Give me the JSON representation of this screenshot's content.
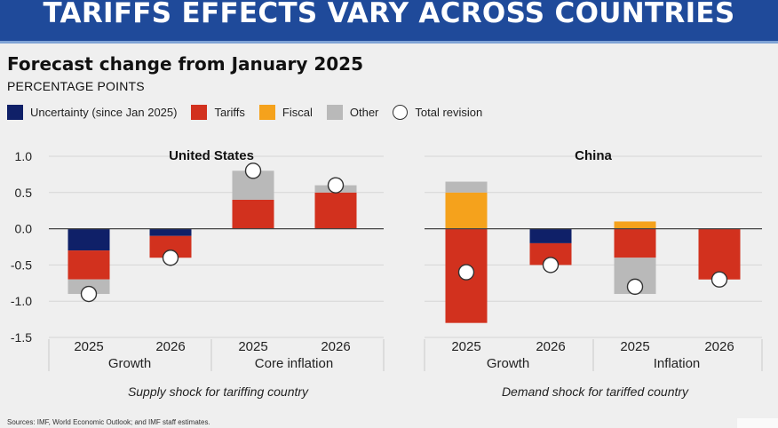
{
  "banner": {
    "title": "TARIFFS EFFECTS VARY ACROSS COUNTRIES"
  },
  "header": {
    "title": "Forecast change from January 2025",
    "subtitle": "PERCENTAGE POINTS"
  },
  "legend": [
    {
      "label": "Uncertainty (since Jan 2025)",
      "color": "#0f2068",
      "shape": "square"
    },
    {
      "label": "Tariffs",
      "color": "#d2311e",
      "shape": "square"
    },
    {
      "label": "Fiscal",
      "color": "#f5a21c",
      "shape": "square"
    },
    {
      "label": "Other",
      "color": "#b9b9b9",
      "shape": "square"
    },
    {
      "label": "Total revision",
      "color": "#ffffff",
      "shape": "circle"
    }
  ],
  "chart_data": [
    {
      "type": "bar",
      "stacked": true,
      "title": "United States",
      "y_ticks": [
        "1.0",
        "0.5",
        "0.0",
        "-0.5",
        "-1.0",
        "-1.5"
      ],
      "ylim": [
        -1.5,
        1.0
      ],
      "categories": [
        "2025",
        "2026",
        "2025",
        "2026"
      ],
      "groups": [
        "Growth",
        "Core inflation"
      ],
      "series": [
        {
          "name": "Uncertainty (since Jan 2025)",
          "values": [
            -0.3,
            -0.1,
            0,
            0
          ]
        },
        {
          "name": "Tariffs",
          "values": [
            -0.4,
            -0.3,
            0.4,
            0.5
          ]
        },
        {
          "name": "Fiscal",
          "values": [
            0,
            0,
            0,
            0
          ]
        },
        {
          "name": "Other",
          "values": [
            -0.2,
            0,
            0.4,
            0.1
          ]
        }
      ],
      "total_revision": [
        -0.9,
        -0.4,
        0.8,
        0.6
      ],
      "caption": "Supply shock for tariffing country"
    },
    {
      "type": "bar",
      "stacked": true,
      "title": "China",
      "ylim": [
        -1.5,
        1.0
      ],
      "categories": [
        "2025",
        "2026",
        "2025",
        "2026"
      ],
      "groups": [
        "Growth",
        "Inflation"
      ],
      "series": [
        {
          "name": "Uncertainty (since Jan 2025)",
          "values": [
            0,
            -0.2,
            0,
            0
          ]
        },
        {
          "name": "Tariffs",
          "values": [
            -1.3,
            -0.3,
            -0.4,
            -0.7
          ]
        },
        {
          "name": "Fiscal",
          "values": [
            0.5,
            0,
            0.1,
            0
          ]
        },
        {
          "name": "Other",
          "values": [
            0.15,
            0,
            -0.5,
            0
          ]
        }
      ],
      "total_revision": [
        -0.6,
        -0.5,
        -0.8,
        -0.7
      ],
      "caption": "Demand shock for tariffed country"
    }
  ],
  "sources": "Sources: IMF, World Economic Outlook; and IMF staff estimates."
}
